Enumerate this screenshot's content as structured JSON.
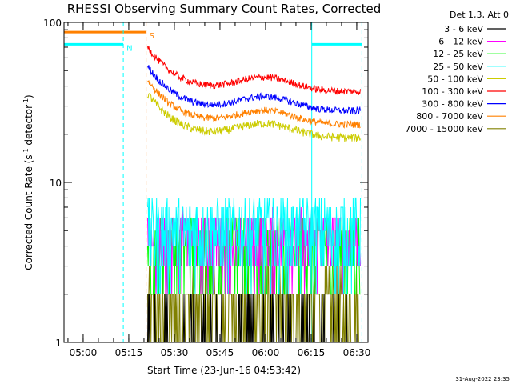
{
  "chart_data": {
    "type": "line",
    "title": "RHESSI Observing Summary Count Rates, Corrected",
    "ylabel_main": "Corrected Count Rate (s",
    "ylabel_sup": "-1",
    "ylabel_mid": " detector",
    "ylabel_sup2": "-1",
    "ylabel_end": ")",
    "xlabel": "Start Time (23-Jun-16 04:53:42)",
    "yscale": "log",
    "ylim": [
      1,
      100
    ],
    "xlim_minutes": [
      0,
      100
    ],
    "y_ticks": [
      {
        "value": 1,
        "label": "1"
      },
      {
        "value": 10,
        "label": "10"
      },
      {
        "value": 100,
        "label": "100"
      }
    ],
    "x_ticks": [
      {
        "minute": 6.3,
        "label": "05:00"
      },
      {
        "minute": 21.3,
        "label": "05:15"
      },
      {
        "minute": 36.3,
        "label": "05:30"
      },
      {
        "minute": 51.3,
        "label": "05:45"
      },
      {
        "minute": 66.3,
        "label": "06:00"
      },
      {
        "minute": 81.3,
        "label": "06:15"
      },
      {
        "minute": 96.3,
        "label": "06:30"
      }
    ],
    "legend_title": "Det 1,3, Att 0",
    "series": [
      {
        "name": "3 - 6 keV",
        "color": "#000000",
        "level": 1.4,
        "spread": 0.35,
        "kind": "quantized"
      },
      {
        "name": "6 - 12 keV",
        "color": "#ff00ff",
        "level": 4.4,
        "spread": 0.25,
        "kind": "quantized"
      },
      {
        "name": "12 - 25 keV",
        "color": "#00ff00",
        "level": 4.0,
        "spread": 0.3,
        "kind": "quantized"
      },
      {
        "name": "25 - 50 keV",
        "color": "#00ffff",
        "level": 5.0,
        "spread": 0.3,
        "kind": "quantized"
      },
      {
        "name": "50 - 100 keV",
        "color": "#cccc00",
        "level": 19,
        "spread": 0.06,
        "kind": "profile"
      },
      {
        "name": "100 - 300 keV",
        "color": "#ff0000",
        "level": 37,
        "spread": 0.05,
        "kind": "profile"
      },
      {
        "name": "300 - 800 keV",
        "color": "#0000ff",
        "level": 28,
        "spread": 0.05,
        "kind": "profile"
      },
      {
        "name": "800 - 7000 keV",
        "color": "#ff8000",
        "level": 23,
        "spread": 0.05,
        "kind": "profile"
      },
      {
        "name": "7000 - 15000 keV",
        "color": "#808000",
        "level": 1.6,
        "spread": 0.35,
        "kind": "quantized"
      }
    ],
    "data_start_minute": 27.5,
    "data_end_minute": 97.5,
    "annotations": [
      {
        "label": "N",
        "color": "#00ffff",
        "start_minute": 0,
        "end_minute": 19.5,
        "level": 73
      },
      {
        "label": "S",
        "color": "#ff8000",
        "start_minute": 0,
        "end_minute": 27.0,
        "level": 87
      },
      {
        "label": "",
        "color": "#00ffff",
        "start_minute": 81.5,
        "end_minute": 98,
        "level": 73
      }
    ],
    "vlines": [
      {
        "minute": 19.5,
        "color": "#00ffff",
        "style": "dashed"
      },
      {
        "minute": 27.0,
        "color": "#ff8000",
        "style": "dashed"
      },
      {
        "minute": 81.5,
        "color": "#00ffff",
        "style": "solid"
      },
      {
        "minute": 98.0,
        "color": "#00ffff",
        "style": "dashed"
      }
    ]
  },
  "footer": {
    "date": "31-Aug-2022 23:35"
  }
}
